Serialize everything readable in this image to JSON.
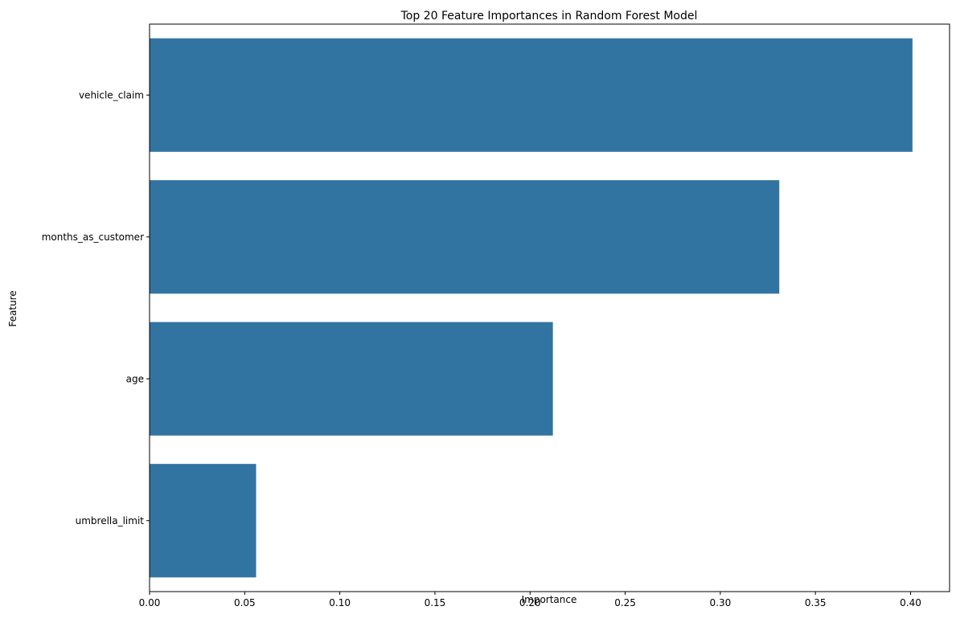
{
  "chart_data": {
    "type": "bar",
    "orientation": "horizontal",
    "title": "Top 20 Feature Importances in Random Forest Model",
    "xlabel": "Importance",
    "ylabel": "Feature",
    "categories": [
      "vehicle_claim",
      "months_as_customer",
      "age",
      "umbrella_limit"
    ],
    "values": [
      0.401,
      0.331,
      0.212,
      0.056
    ],
    "xlim": [
      0,
      0.4205
    ],
    "xticks": [
      0.0,
      0.05,
      0.1,
      0.15,
      0.2,
      0.25,
      0.3,
      0.35,
      0.4
    ],
    "xtick_labels": [
      "0.00",
      "0.05",
      "0.10",
      "0.15",
      "0.20",
      "0.25",
      "0.30",
      "0.35",
      "0.40"
    ],
    "grid": false,
    "legend": "none",
    "bar_color": "#3274a1"
  }
}
